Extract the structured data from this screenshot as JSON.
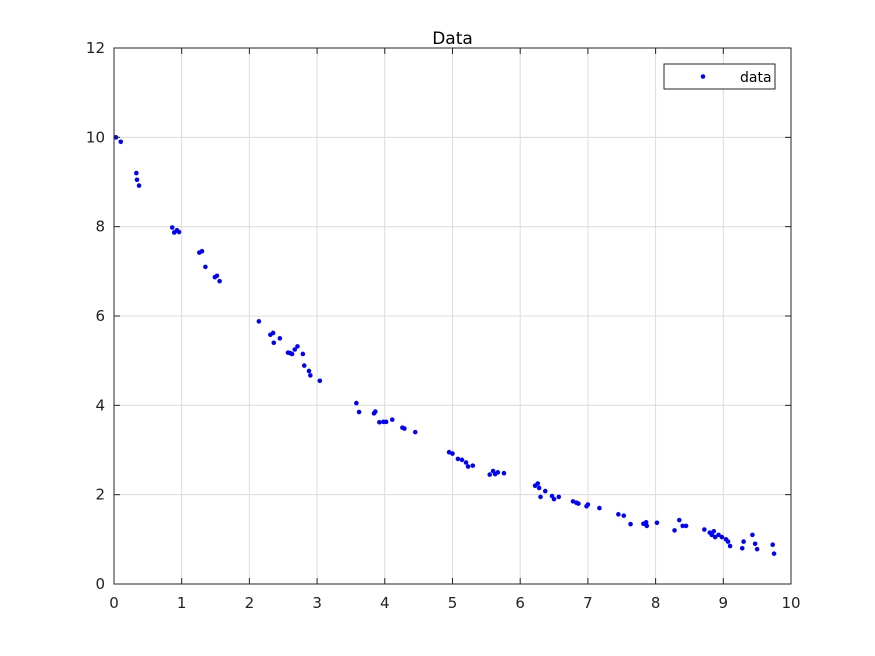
{
  "chart_data": {
    "type": "scatter",
    "title": "Data",
    "xlabel": "",
    "ylabel": "",
    "xlim": [
      0,
      10
    ],
    "ylim": [
      0,
      12
    ],
    "xticks": [
      "0",
      "1",
      "2",
      "3",
      "4",
      "5",
      "6",
      "7",
      "8",
      "9",
      "10"
    ],
    "yticks": [
      "0",
      "2",
      "4",
      "6",
      "8",
      "10",
      "12"
    ],
    "grid": true,
    "legend_position": "top-right",
    "colors": {
      "marker": "#0000ff",
      "axes": "#262626",
      "grid": "#dcdcdc"
    },
    "series": [
      {
        "name": "data",
        "marker": "point",
        "points": [
          [
            0.03,
            10.0
          ],
          [
            0.1,
            9.9
          ],
          [
            0.33,
            9.2
          ],
          [
            0.34,
            9.05
          ],
          [
            0.37,
            8.92
          ],
          [
            0.86,
            7.98
          ],
          [
            0.89,
            7.87
          ],
          [
            0.93,
            7.92
          ],
          [
            0.96,
            7.88
          ],
          [
            1.26,
            7.42
          ],
          [
            1.3,
            7.45
          ],
          [
            1.35,
            7.1
          ],
          [
            1.49,
            6.87
          ],
          [
            1.52,
            6.9
          ],
          [
            1.56,
            6.78
          ],
          [
            2.14,
            5.88
          ],
          [
            2.31,
            5.58
          ],
          [
            2.35,
            5.62
          ],
          [
            2.36,
            5.4
          ],
          [
            2.45,
            5.5
          ],
          [
            2.57,
            5.18
          ],
          [
            2.6,
            5.17
          ],
          [
            2.63,
            5.15
          ],
          [
            2.67,
            5.25
          ],
          [
            2.71,
            5.32
          ],
          [
            2.79,
            5.15
          ],
          [
            2.81,
            4.89
          ],
          [
            2.88,
            4.77
          ],
          [
            2.9,
            4.67
          ],
          [
            3.04,
            4.55
          ],
          [
            3.58,
            4.05
          ],
          [
            3.62,
            3.85
          ],
          [
            3.84,
            3.82
          ],
          [
            3.86,
            3.86
          ],
          [
            3.92,
            3.62
          ],
          [
            3.98,
            3.63
          ],
          [
            4.02,
            3.63
          ],
          [
            4.11,
            3.68
          ],
          [
            4.26,
            3.5
          ],
          [
            4.29,
            3.48
          ],
          [
            4.45,
            3.4
          ],
          [
            4.95,
            2.95
          ],
          [
            5.0,
            2.92
          ],
          [
            5.08,
            2.8
          ],
          [
            5.14,
            2.78
          ],
          [
            5.2,
            2.72
          ],
          [
            5.23,
            2.63
          ],
          [
            5.3,
            2.65
          ],
          [
            5.55,
            2.45
          ],
          [
            5.6,
            2.53
          ],
          [
            5.63,
            2.46
          ],
          [
            5.67,
            2.5
          ],
          [
            5.76,
            2.48
          ],
          [
            6.22,
            2.2
          ],
          [
            6.26,
            2.25
          ],
          [
            6.28,
            2.15
          ],
          [
            6.3,
            1.95
          ],
          [
            6.37,
            2.08
          ],
          [
            6.47,
            1.97
          ],
          [
            6.5,
            1.9
          ],
          [
            6.57,
            1.95
          ],
          [
            6.78,
            1.85
          ],
          [
            6.83,
            1.82
          ],
          [
            6.86,
            1.8
          ],
          [
            6.98,
            1.74
          ],
          [
            7.0,
            1.78
          ],
          [
            7.17,
            1.7
          ],
          [
            7.45,
            1.56
          ],
          [
            7.53,
            1.53
          ],
          [
            7.63,
            1.34
          ],
          [
            7.82,
            1.35
          ],
          [
            7.86,
            1.38
          ],
          [
            7.87,
            1.3
          ],
          [
            8.02,
            1.37
          ],
          [
            8.28,
            1.2
          ],
          [
            8.35,
            1.43
          ],
          [
            8.4,
            1.3
          ],
          [
            8.45,
            1.3
          ],
          [
            8.72,
            1.22
          ],
          [
            8.8,
            1.15
          ],
          [
            8.83,
            1.1
          ],
          [
            8.86,
            1.18
          ],
          [
            8.88,
            1.05
          ],
          [
            8.93,
            1.1
          ],
          [
            8.98,
            1.05
          ],
          [
            9.04,
            1.0
          ],
          [
            9.07,
            0.95
          ],
          [
            9.1,
            0.85
          ],
          [
            9.28,
            0.8
          ],
          [
            9.3,
            0.95
          ],
          [
            9.43,
            1.1
          ],
          [
            9.47,
            0.9
          ],
          [
            9.5,
            0.78
          ],
          [
            9.73,
            0.88
          ],
          [
            9.75,
            0.68
          ]
        ]
      }
    ]
  }
}
